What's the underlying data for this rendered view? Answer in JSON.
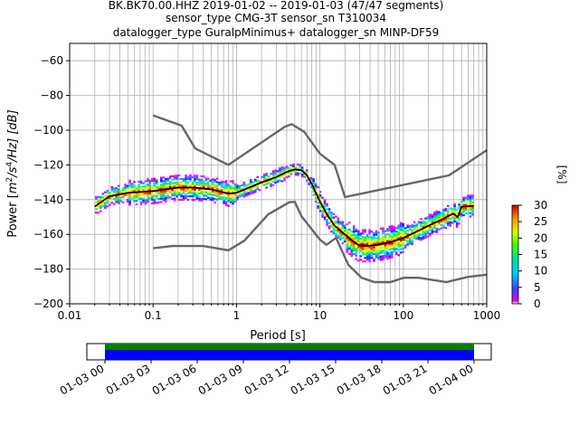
{
  "title_lines": [
    "BK.BK70.00.HHZ   2019-01-02 -- 2019-01-03  (47/47 segments)",
    "sensor_type CMG-3T sensor_sn T310034",
    "datalogger_type GuralpMinimus+ datalogger_sn MINP-DF59"
  ],
  "chart_data": {
    "type": "heatmap",
    "xlabel": "Period [s]",
    "ylabel": "Power [m²/s⁴/Hz] [dB]",
    "ylabel_parts": {
      "pre": "Power [",
      "m": "m",
      "e2": "2",
      "s": "/s",
      "e4": "4",
      "hz": "/Hz] [dB]"
    },
    "x_scale": "log",
    "xlim": [
      0.01,
      1000
    ],
    "ylim": [
      -200,
      -50
    ],
    "x_ticks": [
      0.01,
      0.1,
      1,
      10,
      100,
      1000
    ],
    "x_tick_labels": [
      "0.01",
      "0.1",
      "1",
      "10",
      "100",
      "1000"
    ],
    "y_ticks": [
      -200,
      -180,
      -160,
      -140,
      -120,
      -100,
      -80,
      -60
    ],
    "y_tick_labels": [
      "−200",
      "−180",
      "−160",
      "−140",
      "−120",
      "−100",
      "−80",
      "−60"
    ],
    "grid": true,
    "colorbar": {
      "label": "[%]",
      "min": 0,
      "max": 30,
      "ticks": [
        0,
        5,
        10,
        15,
        20,
        25,
        30
      ],
      "tick_labels": [
        "0",
        "5",
        "10",
        "15",
        "20",
        "25",
        "30"
      ],
      "colormap": "pqlx"
    },
    "series": [
      {
        "name": "",
        "x": [
          0.1,
          0.22,
          0.32,
          0.8,
          3.8,
          4.6,
          6.5,
          10,
          15,
          20,
          354,
          1000
        ],
        "y": [
          -91.5,
          -97.4,
          -110.5,
          -120,
          -98,
          -96.5,
          -101,
          -113.5,
          -120,
          -138.5,
          -126,
          -111.5
        ]
      },
      {
        "name": "",
        "x": [
          0.1,
          0.17,
          0.4,
          0.8,
          1.24,
          2.4,
          4.3,
          5,
          6,
          10,
          12,
          15.6,
          21.9,
          31.6,
          45,
          70,
          101,
          154,
          328,
          600,
          10000
        ],
        "y": [
          -168,
          -166.7,
          -166.7,
          -169.2,
          -163.7,
          -148.5,
          -141.5,
          -141.3,
          -149.5,
          -163,
          -166,
          -162,
          -177.5,
          -185,
          -187.5,
          -187.5,
          -185,
          -185,
          -187.5,
          -184.5,
          -177.5
        ]
      },
      {
        "name": "",
        "x": [
          0.02,
          0.03,
          0.05,
          0.1,
          0.2,
          0.3,
          0.5,
          0.8,
          1,
          2,
          3,
          4,
          5,
          6,
          7,
          8,
          10,
          12,
          15,
          20,
          25,
          30,
          40,
          50,
          70,
          100,
          150,
          200,
          300,
          400,
          450,
          500,
          700
        ],
        "y": [
          -144,
          -138,
          -136,
          -135,
          -133,
          -133,
          -134,
          -136.5,
          -136,
          -130,
          -127,
          -124,
          -122.5,
          -123,
          -126,
          -131,
          -141,
          -148,
          -155,
          -160,
          -164,
          -166.5,
          -166.5,
          -166,
          -164.5,
          -162,
          -158,
          -155,
          -151,
          -148,
          -150,
          -144,
          -143.5
        ]
      }
    ],
    "time_axis": {
      "ticks": [
        "01-03 00",
        "01-03 03",
        "01-03 06",
        "01-03 09",
        "01-03 12",
        "01-03 15",
        "01-03 18",
        "01-03 21",
        "01-04 00"
      ],
      "coverage_colors": [
        "#008000",
        "#0000ff"
      ]
    }
  }
}
